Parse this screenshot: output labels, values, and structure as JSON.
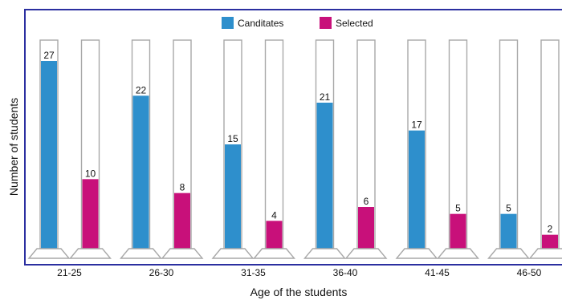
{
  "chart_data": {
    "type": "bar",
    "xlabel": "Age of the students",
    "ylabel": "Number of students",
    "ylim": [
      0,
      30
    ],
    "categories": [
      "21-25",
      "26-30",
      "31-35",
      "36-40",
      "41-45",
      "46-50"
    ],
    "series": [
      {
        "name": "Canditates",
        "color": "#2e8fcc",
        "values": [
          27,
          22,
          15,
          21,
          17,
          5
        ]
      },
      {
        "name": "Selected",
        "color": "#c8107a",
        "values": [
          10,
          8,
          4,
          6,
          5,
          2
        ]
      }
    ],
    "legend": "top-center",
    "frame_color": "#2b2fa0",
    "style": "measuring-cylinders"
  }
}
